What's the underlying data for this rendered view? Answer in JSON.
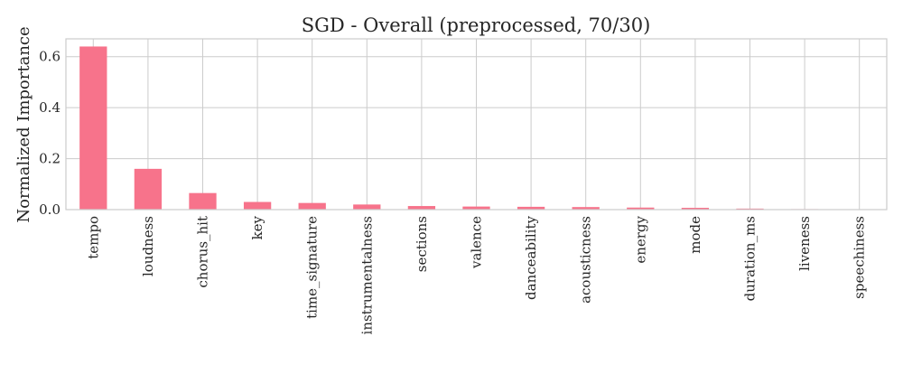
{
  "chart_data": {
    "type": "bar",
    "title": "SGD - Overall (preprocessed, 70/30)",
    "xlabel": "",
    "ylabel": "Normalized Importance",
    "categories": [
      "tempo",
      "loudness",
      "chorus_hit",
      "key",
      "time_signature",
      "instrumentalness",
      "sections",
      "valence",
      "danceability",
      "acousticness",
      "energy",
      "mode",
      "duration_ms",
      "liveness",
      "speechiness"
    ],
    "values": [
      0.64,
      0.16,
      0.065,
      0.03,
      0.026,
      0.02,
      0.014,
      0.012,
      0.011,
      0.01,
      0.008,
      0.007,
      0.004,
      0.002,
      0.001
    ],
    "ylim": [
      0,
      0.67
    ],
    "yticks": [
      0.0,
      0.2,
      0.4,
      0.6
    ],
    "ytick_labels": [
      "0.0",
      "0.2",
      "0.4",
      "0.6"
    ],
    "grid": true,
    "legend": "none",
    "colors": {
      "bar": "#f7738b",
      "grid": "#cccccc",
      "axes_edge": "#cccccc",
      "text": "#262626"
    }
  }
}
